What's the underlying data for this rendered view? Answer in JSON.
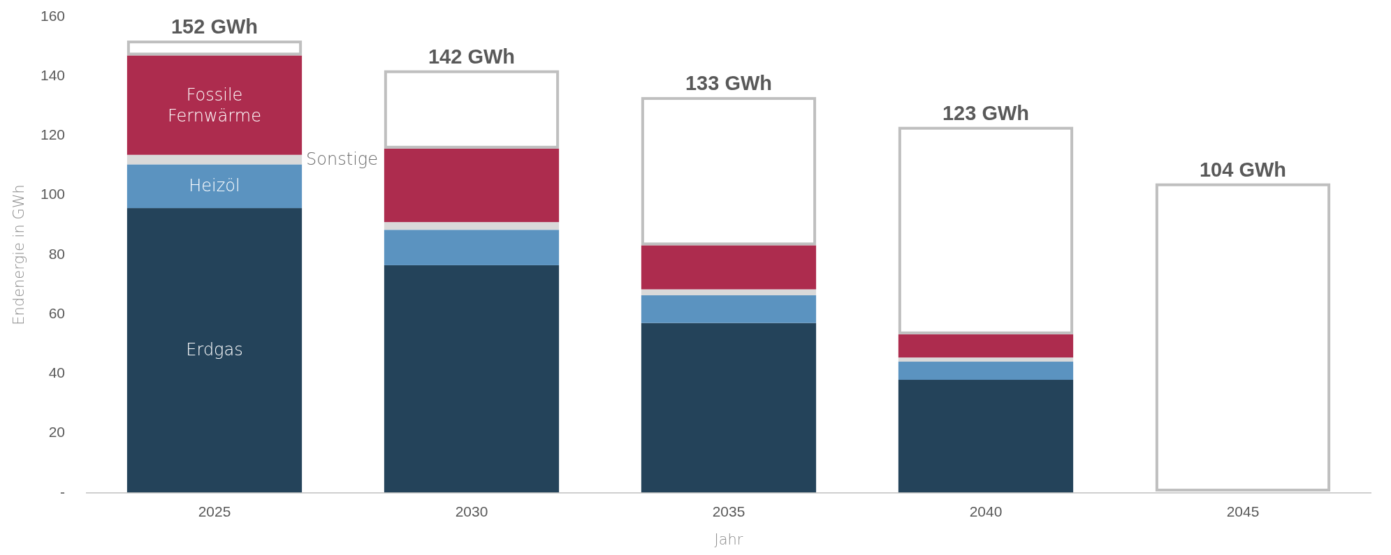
{
  "chart_data": {
    "type": "bar",
    "stacked": true,
    "xlabel": "Jahr",
    "ylabel": "Endenergie in GWh",
    "categories": [
      "2025",
      "2030",
      "2035",
      "2040",
      "2045"
    ],
    "ylim": [
      0,
      160
    ],
    "yticks": [
      {
        "value": 0,
        "label": "-"
      },
      20,
      40,
      60,
      80,
      100,
      120,
      140,
      160
    ],
    "grid": false,
    "legend": false,
    "series": [
      {
        "name": "Erdgas",
        "color": "#24435a",
        "values": [
          95.7,
          76.5,
          57.1,
          38,
          0
        ]
      },
      {
        "name": "Heizöl",
        "color": "#5b93c0",
        "values": [
          14.7,
          11.9,
          9.3,
          6.1,
          0
        ]
      },
      {
        "name": "Sonstige",
        "color": "#d9d9d9",
        "values": [
          3.2,
          2.6,
          2,
          1.4,
          0
        ]
      },
      {
        "name": "Fossile Fernwärme",
        "color": "#ad2c4e",
        "values": [
          33.4,
          24.7,
          14.8,
          7.8,
          0
        ]
      },
      {
        "color": "#bfbfbf",
        "values": [
          5,
          26.3,
          49.8,
          69.7,
          104
        ]
      }
    ],
    "totals": [
      "152 GWh",
      "142 GWh",
      "133 GWh",
      "123 GWh",
      "104 GWh"
    ]
  }
}
